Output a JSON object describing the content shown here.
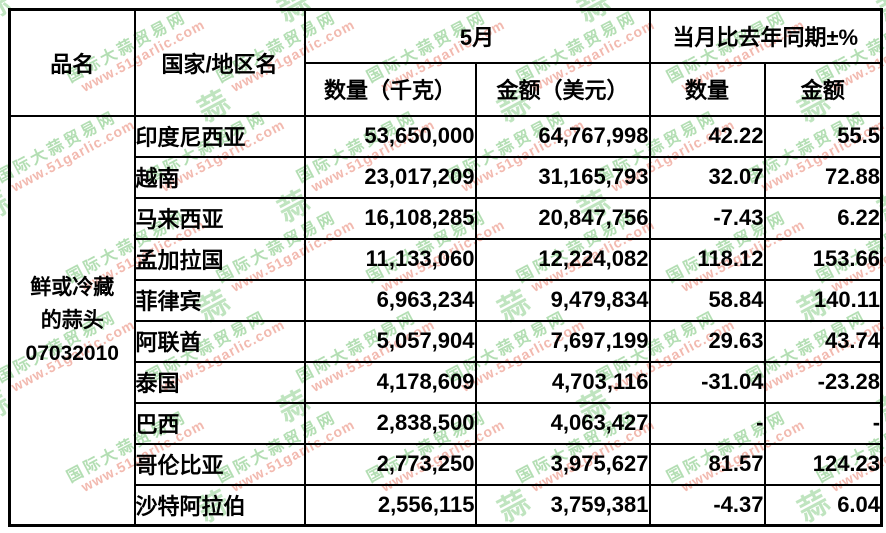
{
  "table": {
    "headers": {
      "product": "品名",
      "country": "国家/地区名",
      "month_group": "5月",
      "yoy_group": "当月比去年同期±%",
      "quantity_kg": "数量（千克）",
      "amount_usd": "金额（美元）",
      "quantity_pct": "数量",
      "amount_pct": "金额"
    },
    "product": {
      "lines": [
        "鲜或冷藏",
        "的蒜头",
        "07032010"
      ]
    },
    "rows": [
      {
        "country": "印度尼西亚",
        "quantity": "53,650,000",
        "amount": "64,767,998",
        "quantity_pct": "42.22",
        "amount_pct": "55.5"
      },
      {
        "country": "越南",
        "quantity": "23,017,209",
        "amount": "31,165,793",
        "quantity_pct": "32.07",
        "amount_pct": "72.88"
      },
      {
        "country": "马来西亚",
        "quantity": "16,108,285",
        "amount": "20,847,756",
        "quantity_pct": "-7.43",
        "amount_pct": "6.22"
      },
      {
        "country": "孟加拉国",
        "quantity": "11,133,060",
        "amount": "12,224,082",
        "quantity_pct": "118.12",
        "amount_pct": "153.66"
      },
      {
        "country": "菲律宾",
        "quantity": "6,963,234",
        "amount": "9,479,834",
        "quantity_pct": "58.84",
        "amount_pct": "140.11"
      },
      {
        "country": "阿联酋",
        "quantity": "5,057,904",
        "amount": "7,697,199",
        "quantity_pct": "29.63",
        "amount_pct": "43.74"
      },
      {
        "country": "泰国",
        "quantity": "4,178,609",
        "amount": "4,703,116",
        "quantity_pct": "-31.04",
        "amount_pct": "-23.28"
      },
      {
        "country": "巴西",
        "quantity": "2,838,500",
        "amount": "4,063,427",
        "quantity_pct": "-",
        "amount_pct": "-"
      },
      {
        "country": "哥伦比亚",
        "quantity": "2,773,250",
        "amount": "3,975,627",
        "quantity_pct": "81.57",
        "amount_pct": "124.23"
      },
      {
        "country": "沙特阿拉伯",
        "quantity": "2,556,115",
        "amount": "3,759,381",
        "quantity_pct": "-4.37",
        "amount_pct": "6.04"
      }
    ],
    "colors": {
      "text": "#000000",
      "negative": "#ff0000",
      "border": "#000000"
    }
  },
  "watermark": {
    "stamp_glyph": "蒜",
    "site_name": "国际大蒜贸易网",
    "site_url": "www.51garlic.com",
    "colors": {
      "stamp_green": "#b4e0b4",
      "text_green": "#a6d9a6",
      "url_red": "#f0a89c"
    }
  }
}
